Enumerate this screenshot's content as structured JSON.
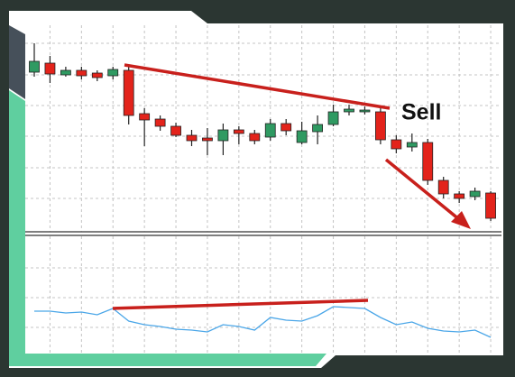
{
  "chart_data": [
    {
      "type": "candlestick",
      "annotation": "Sell",
      "open": [
        177,
        187,
        174,
        179,
        176,
        173,
        179,
        131,
        125,
        117,
        107,
        104,
        101,
        113,
        109,
        105,
        120,
        99,
        111,
        119,
        133,
        133,
        133,
        102,
        94,
        99,
        57,
        42,
        39,
        43
      ],
      "high": [
        209,
        195,
        183,
        183,
        179,
        183,
        185,
        137,
        129,
        121,
        113,
        115,
        120,
        117,
        113,
        125,
        125,
        122,
        129,
        141,
        141,
        139,
        139,
        107,
        109,
        103,
        61,
        45,
        49,
        45
      ],
      "low": [
        172,
        165,
        172,
        169,
        167,
        169,
        119,
        95,
        112,
        105,
        95,
        85,
        85,
        97,
        97,
        101,
        107,
        97,
        97,
        117,
        129,
        130,
        97,
        87,
        89,
        52,
        37,
        32,
        35,
        12
      ],
      "close": [
        189,
        175,
        179,
        173,
        171,
        180,
        129,
        124,
        117,
        107,
        101,
        101,
        113,
        109,
        101,
        120,
        112,
        112,
        119,
        133,
        136,
        135,
        102,
        92,
        99,
        57,
        42,
        37,
        45,
        15
      ],
      "up_color": "#2f9a62",
      "down_color": "#e3231b",
      "ylim": [
        0,
        229
      ],
      "yticks": [
        37,
        71,
        106,
        140,
        174,
        209
      ],
      "xticks": [
        1,
        3,
        5,
        7,
        9,
        11,
        13,
        15,
        17,
        19,
        21,
        23,
        25,
        27,
        29
      ],
      "grid": true
    },
    {
      "type": "line",
      "values": [
        47,
        47,
        45,
        46,
        43,
        50,
        36,
        32,
        30,
        27,
        26,
        24,
        32,
        30,
        26,
        40,
        37,
        36,
        42,
        52,
        51,
        50,
        40,
        32,
        35,
        28,
        25,
        24,
        26,
        18
      ],
      "color": "#4aa6e8",
      "ylim": [
        0,
        130
      ],
      "yticks": [
        29,
        62,
        95
      ],
      "xticks": [
        1,
        3,
        5,
        7,
        9,
        11,
        13,
        15,
        17,
        19,
        21,
        23,
        25,
        27,
        29
      ],
      "grid": true
    }
  ]
}
